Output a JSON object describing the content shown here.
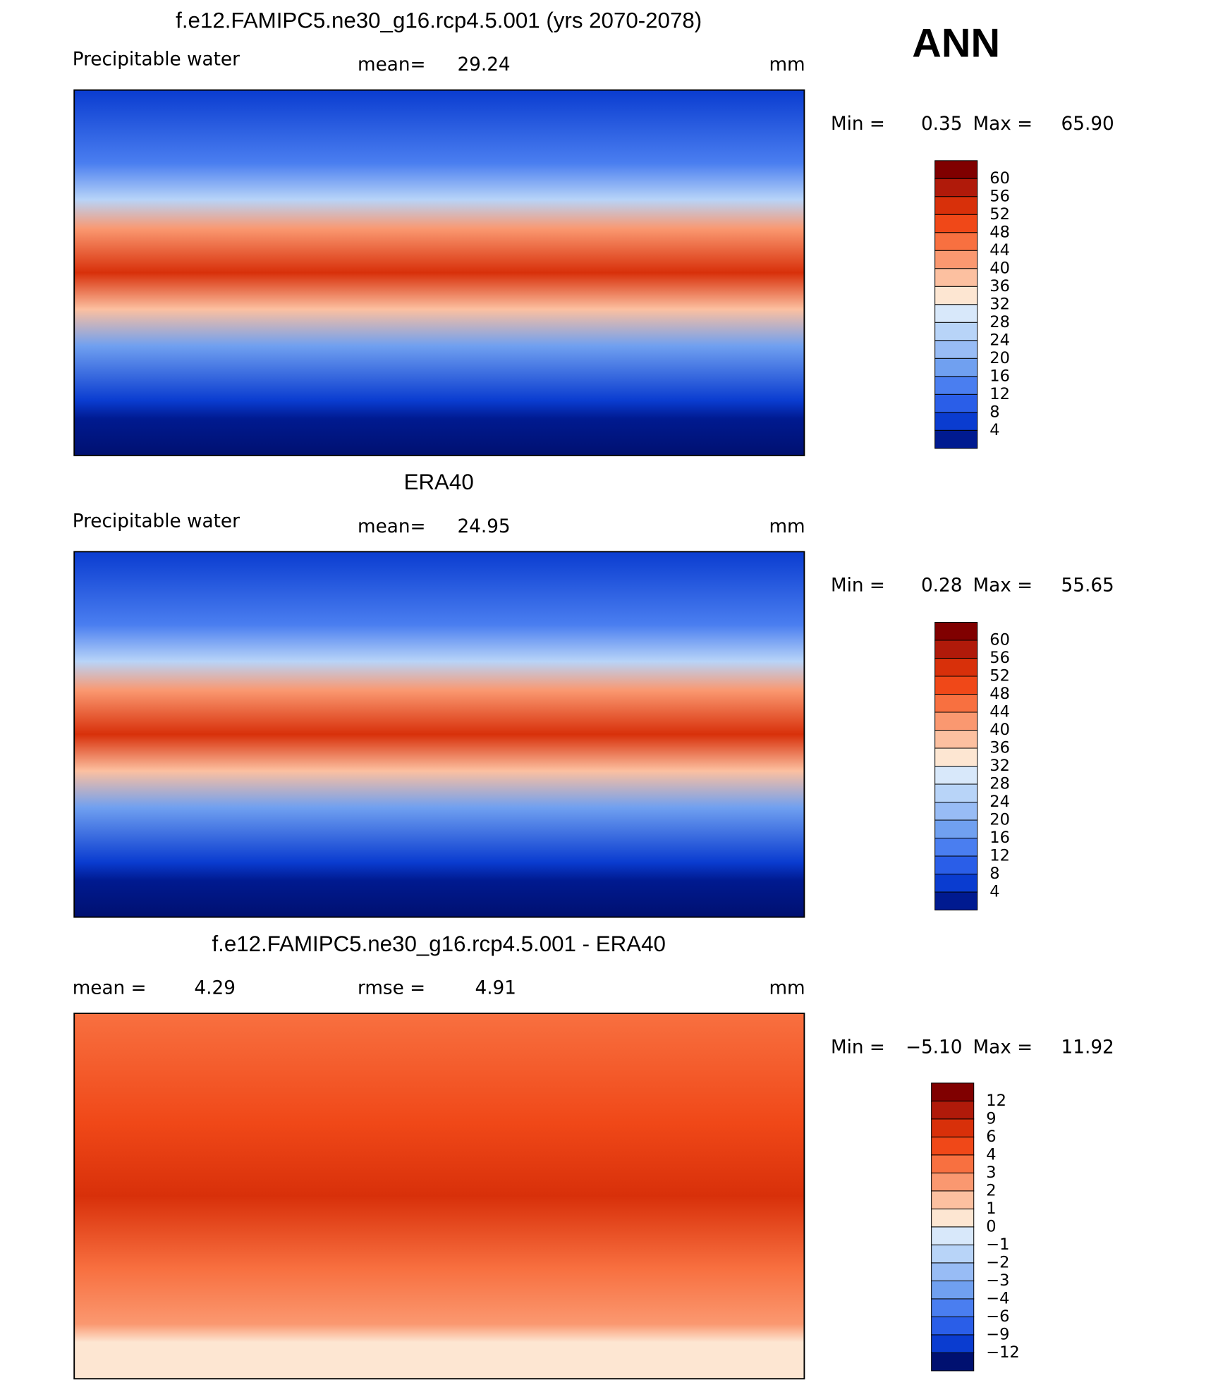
{
  "header": {
    "season": "ANN"
  },
  "panels": [
    {
      "title": "f.e12.FAMIPC5.ne30_g16.rcp4.5.001 (yrs 2070-2078)",
      "left_label": "Precipitable  water",
      "middle_label": "mean=",
      "middle_value": "29.24",
      "units": "mm",
      "min_label": "Min =",
      "min": "0.35",
      "max_label": "Max =",
      "max": "65.90",
      "colorbar": {
        "labels": [
          "60",
          "56",
          "52",
          "48",
          "44",
          "40",
          "36",
          "32",
          "28",
          "24",
          "20",
          "16",
          "12",
          "8",
          "4"
        ],
        "colors": [
          "#800000",
          "#b01a0a",
          "#d8300a",
          "#f04818",
          "#f87040",
          "#fa9870",
          "#fcc0a0",
          "#fde6d2",
          "#d8e8fa",
          "#b8d4f8",
          "#98bcf5",
          "#70a0f0",
          "#4a7ef0",
          "#2a5ee8",
          "#0a3cd0",
          "#001a90"
        ]
      }
    },
    {
      "title": "ERA40",
      "left_label": "Precipitable  water",
      "middle_label": "mean=",
      "middle_value": "24.95",
      "units": "mm",
      "min_label": "Min =",
      "min": "0.28",
      "max_label": "Max =",
      "max": "55.65",
      "colorbar": {
        "labels": [
          "60",
          "56",
          "52",
          "48",
          "44",
          "40",
          "36",
          "32",
          "28",
          "24",
          "20",
          "16",
          "12",
          "8",
          "4"
        ],
        "colors": [
          "#800000",
          "#b01a0a",
          "#d8300a",
          "#f04818",
          "#f87040",
          "#fa9870",
          "#fcc0a0",
          "#fde6d2",
          "#d8e8fa",
          "#b8d4f8",
          "#98bcf5",
          "#70a0f0",
          "#4a7ef0",
          "#2a5ee8",
          "#0a3cd0",
          "#001a90"
        ]
      }
    },
    {
      "title": "f.e12.FAMIPC5.ne30_g16.rcp4.5.001 - ERA40",
      "left_label": "mean =",
      "left_value": "4.29",
      "middle_label": "rmse =",
      "middle_value": "4.91",
      "units": "mm",
      "min_label": "Min =",
      "min": "−5.10",
      "max_label": "Max =",
      "max": "11.92",
      "colorbar": {
        "labels": [
          "12",
          "9",
          "6",
          "4",
          "3",
          "2",
          "1",
          "0",
          "−1",
          "−2",
          "−3",
          "−4",
          "−6",
          "−9",
          "−12"
        ],
        "colors": [
          "#800000",
          "#b01a0a",
          "#d8300a",
          "#f04818",
          "#f87040",
          "#fa9870",
          "#fcc0a0",
          "#fde6d2",
          "#d8e8fa",
          "#b8d4f8",
          "#98bcf5",
          "#70a0f0",
          "#4a7ef0",
          "#2a5ee8",
          "#0a3cd0",
          "#001070"
        ]
      }
    }
  ]
}
